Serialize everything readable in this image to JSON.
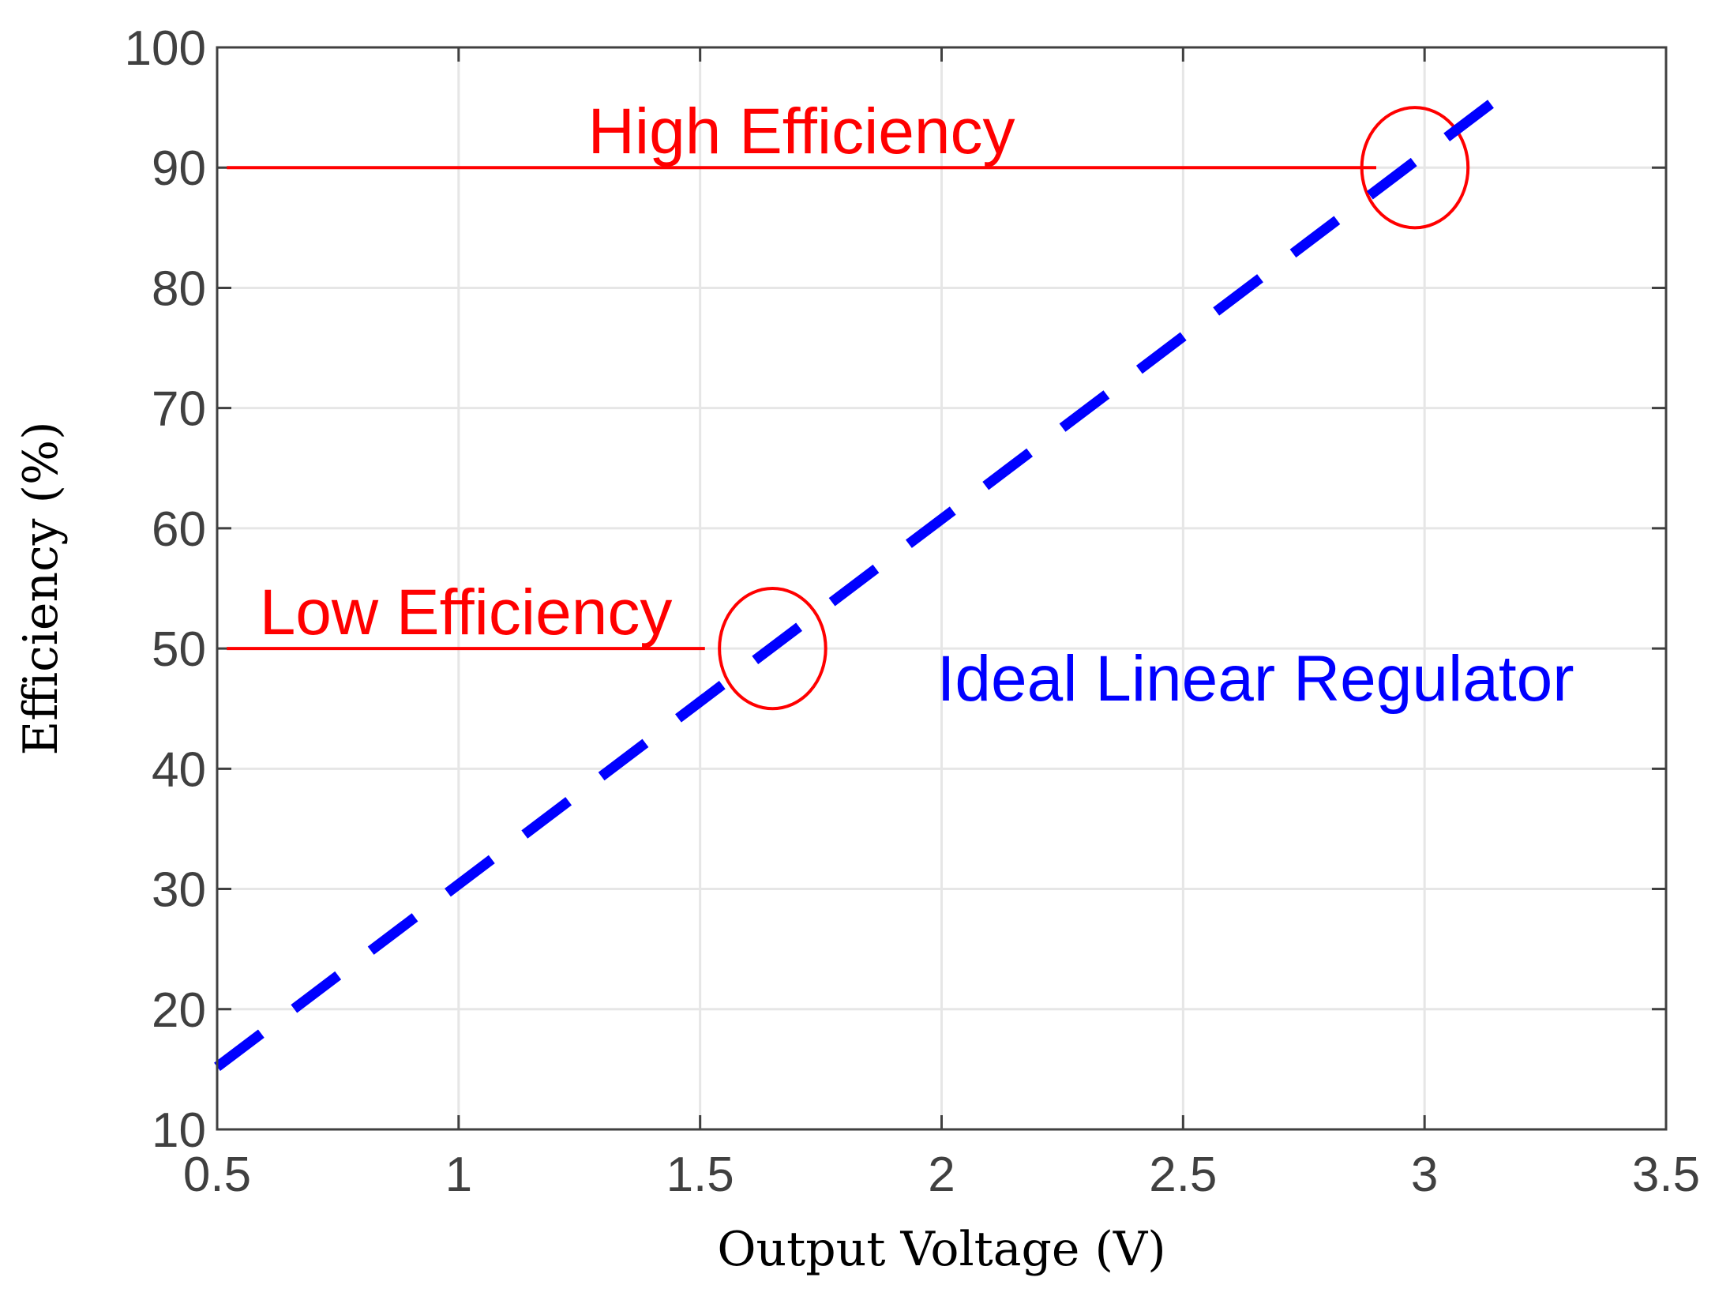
{
  "colors": {
    "series": "#0000ff",
    "annotation": "#ff0000",
    "grid": "#e6e6e6",
    "axis": "#404040",
    "background": "#ffffff"
  },
  "chart_data": {
    "type": "line",
    "xlabel": "Output Voltage (V)",
    "ylabel": "Efficiency (%)",
    "xlim": [
      0.5,
      3.5
    ],
    "ylim": [
      10,
      100
    ],
    "xticks": [
      0.5,
      1,
      1.5,
      2,
      2.5,
      3,
      3.5
    ],
    "xtick_labels": [
      "0.5",
      "1",
      "1.5",
      "2",
      "2.5",
      "3",
      "3.5"
    ],
    "yticks": [
      10,
      20,
      30,
      40,
      50,
      60,
      70,
      80,
      90,
      100
    ],
    "ytick_labels": [
      "10",
      "20",
      "30",
      "40",
      "50",
      "60",
      "70",
      "80",
      "90",
      "100"
    ],
    "grid": true,
    "series": [
      {
        "line_style": "dashed",
        "x": [
          0.5,
          3.17
        ],
        "y": [
          15.2,
          96.3
        ]
      }
    ],
    "annotations": {
      "high": {
        "text": "High Efficiency",
        "y": 90,
        "x_start": 0.52,
        "x_end": 2.9,
        "circle": {
          "cx": 2.98,
          "cy": 90,
          "rx": 0.11,
          "ry": 5
        }
      },
      "low": {
        "text": "Low Efficiency",
        "y": 50,
        "x_start": 0.52,
        "x_end": 1.51,
        "circle": {
          "cx": 1.65,
          "cy": 50,
          "rx": 0.11,
          "ry": 5
        }
      },
      "series_label": {
        "text": "Ideal Linear Regulator",
        "x": 2.65,
        "y": 47.5
      }
    }
  }
}
